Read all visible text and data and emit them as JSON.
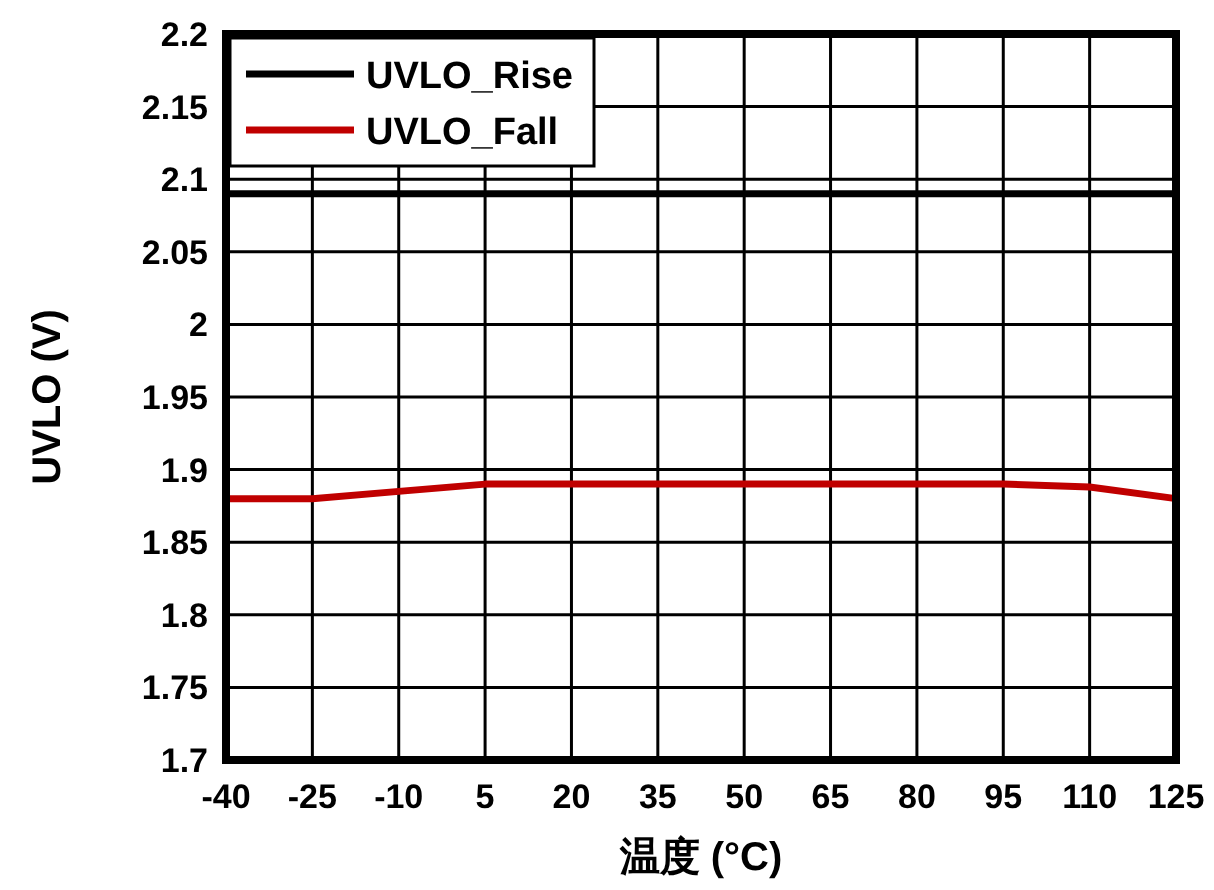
{
  "chart_data": {
    "type": "line",
    "xlabel": "温度 (°C)",
    "ylabel": "UVLO (V)",
    "x": [
      -40,
      -25,
      -10,
      5,
      20,
      35,
      50,
      65,
      80,
      95,
      110,
      125
    ],
    "series": [
      {
        "name": "UVLO_Rise",
        "color": "#000000",
        "values": [
          2.09,
          2.09,
          2.09,
          2.09,
          2.09,
          2.09,
          2.09,
          2.09,
          2.09,
          2.09,
          2.09,
          2.09
        ]
      },
      {
        "name": "UVLO_Fall",
        "color": "#c00000",
        "values": [
          1.88,
          1.88,
          1.885,
          1.89,
          1.89,
          1.89,
          1.89,
          1.89,
          1.89,
          1.89,
          1.888,
          1.88
        ]
      }
    ],
    "xlim": [
      -40,
      125
    ],
    "xticks": [
      -40,
      -25,
      -10,
      5,
      20,
      35,
      50,
      65,
      80,
      95,
      110,
      125
    ],
    "ylim": [
      1.7,
      2.2
    ],
    "yticks": [
      1.7,
      1.75,
      1.8,
      1.85,
      1.9,
      1.95,
      2,
      2.05,
      2.1,
      2.15,
      2.2
    ],
    "grid": true,
    "legend": "top left",
    "marker": "none",
    "line_style": "solid"
  }
}
